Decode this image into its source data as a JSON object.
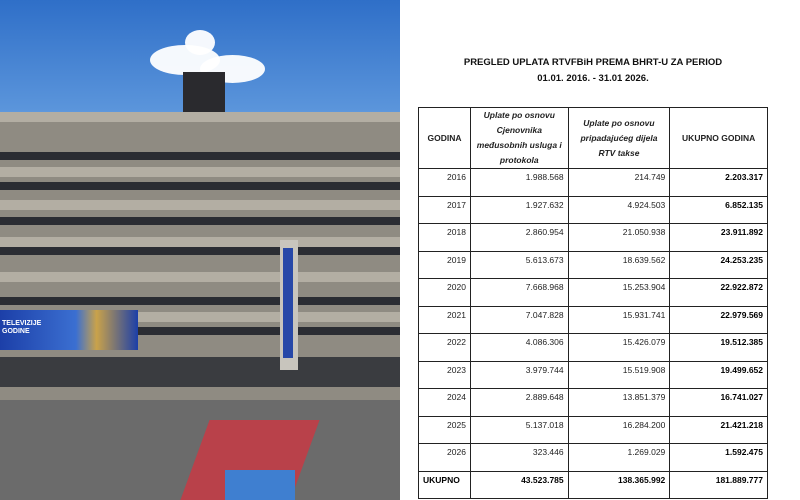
{
  "photo": {
    "banner_text": "TELEVIZIJE\nGODINE"
  },
  "title_line1": "PREGLED UPLATA RTVFBiH PREMA BHRT-U ZA PERIOD",
  "title_line2": "01.01. 2016. - 31.01 2026.",
  "table": {
    "headers": [
      "GODINA",
      "Uplate po osnovu Cjenovnika međusobnih usluga i protokola",
      "Uplate po osnovu pripadajućeg dijela RTV takse",
      "UKUPNO GODINA"
    ],
    "rows": [
      [
        "2016",
        "1.988.568",
        "214.749",
        "2.203.317"
      ],
      [
        "2017",
        "1.927.632",
        "4.924.503",
        "6.852.135"
      ],
      [
        "2018",
        "2.860.954",
        "21.050.938",
        "23.911.892"
      ],
      [
        "2019",
        "5.613.673",
        "18.639.562",
        "24.253.235"
      ],
      [
        "2020",
        "7.668.968",
        "15.253.904",
        "22.922.872"
      ],
      [
        "2021",
        "7.047.828",
        "15.931.741",
        "22.979.569"
      ],
      [
        "2022",
        "4.086.306",
        "15.426.079",
        "19.512.385"
      ],
      [
        "2023",
        "3.979.744",
        "15.519.908",
        "19.499.652"
      ],
      [
        "2024",
        "2.889.648",
        "13.851.379",
        "16.741.027"
      ],
      [
        "2025",
        "5.137.018",
        "16.284.200",
        "21.421.218"
      ],
      [
        "2026",
        "323.446",
        "1.269.029",
        "1.592.475"
      ]
    ],
    "total": [
      "UKUPNO",
      "43.523.785",
      "138.365.992",
      "181.889.777"
    ]
  }
}
